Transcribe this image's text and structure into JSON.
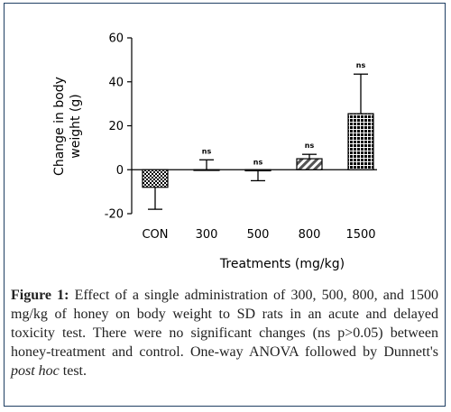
{
  "chart_data": {
    "type": "bar",
    "categories": [
      "CON",
      "300",
      "500",
      "800",
      "1500"
    ],
    "values": [
      -8,
      0,
      -0.5,
      5,
      25.5
    ],
    "errors": [
      10,
      4.5,
      4.5,
      2,
      18
    ],
    "significance": [
      "",
      "ns",
      "ns",
      "ns",
      "ns"
    ],
    "fills": [
      "checker",
      "solid",
      "solid",
      "diagonal",
      "grid"
    ],
    "ylabel_lines": [
      "Change in body",
      "weight (g)"
    ],
    "xlabel": "Treatments (mg/kg)",
    "ylim": [
      -20,
      60
    ],
    "yticks": [
      "-20",
      "0",
      "20",
      "40",
      "60"
    ],
    "legend": "none",
    "grid": false
  },
  "caption": {
    "label": "Figure 1:",
    "text_before_italic": " Effect of a single administration of 300, 500, 800, and 1500 mg/kg of honey on body weight to SD rats in an acute and delayed toxicity test. There were no significant changes (ns p>0.05) between honey-treatment and control. One-way ANOVA followed by Dunnett's ",
    "italic": "post hoc",
    "text_after_italic": " test."
  }
}
